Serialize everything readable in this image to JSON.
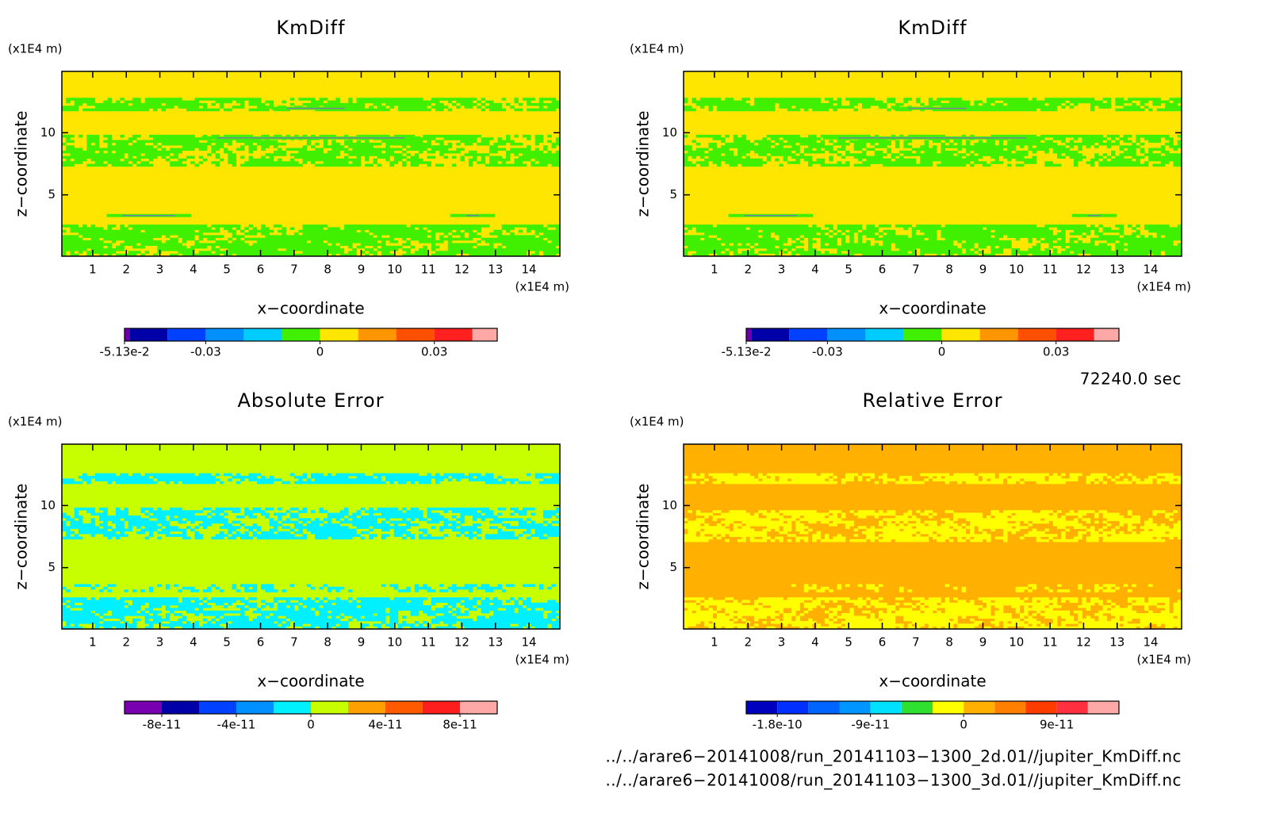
{
  "chart_data": [
    {
      "type": "contour",
      "title": "KmDiff",
      "xlabel": "x−coordinate",
      "ylabel": "z−coordinate",
      "xunit": "(x1E4 m)",
      "yunit": "(x1E4 m)",
      "xlim": [
        0.08,
        14.92
      ],
      "ylim": [
        0.06,
        14.94
      ],
      "xticks": [
        1,
        2,
        3,
        4,
        5,
        6,
        7,
        8,
        9,
        10,
        11,
        12,
        13,
        14
      ],
      "yticks": [
        5,
        10
      ],
      "colorbar": {
        "levels": [
          -0.0513,
          -0.05,
          -0.04,
          -0.03,
          -0.02,
          -0.01,
          0,
          0.01,
          0.02,
          0.03,
          0.04,
          0.0465
        ],
        "colors": [
          "#6a00a8",
          "#0000a8",
          "#0040ff",
          "#0090ff",
          "#00ccff",
          "#40f000",
          "#ffe600",
          "#ff9600",
          "#ff5000",
          "#ff2020",
          "#ffa8a8"
        ],
        "ticks": [
          {
            "value": -0.0513,
            "label": "-5.13e-2"
          },
          -0.03,
          0,
          0.03
        ]
      }
    },
    {
      "type": "contour",
      "title": "KmDiff",
      "xlabel": "x−coordinate",
      "ylabel": "z−coordinate",
      "xunit": "(x1E4 m)",
      "yunit": "(x1E4 m)",
      "xlim": [
        0.08,
        14.92
      ],
      "ylim": [
        0.06,
        14.94
      ],
      "xticks": [
        1,
        2,
        3,
        4,
        5,
        6,
        7,
        8,
        9,
        10,
        11,
        12,
        13,
        14
      ],
      "yticks": [
        5,
        10
      ],
      "colorbar": {
        "levels": [
          -0.0513,
          -0.05,
          -0.04,
          -0.03,
          -0.02,
          -0.01,
          0,
          0.01,
          0.02,
          0.03,
          0.04,
          0.0465
        ],
        "colors": [
          "#6a00a8",
          "#0000a8",
          "#0040ff",
          "#0090ff",
          "#00ccff",
          "#40f000",
          "#ffe600",
          "#ff9600",
          "#ff5000",
          "#ff2020",
          "#ffa8a8"
        ],
        "ticks": [
          {
            "value": -0.0513,
            "label": "-5.13e-2"
          },
          -0.03,
          0,
          0.03
        ]
      }
    },
    {
      "type": "contour",
      "title": "Absolute Error",
      "xlabel": "x−coordinate",
      "ylabel": "z−coordinate",
      "xunit": "(x1E4 m)",
      "yunit": "(x1E4 m)",
      "xlim": [
        0.08,
        14.92
      ],
      "ylim": [
        0.06,
        14.94
      ],
      "xticks": [
        1,
        2,
        3,
        4,
        5,
        6,
        7,
        8,
        9,
        10,
        11,
        12,
        13,
        14
      ],
      "yticks": [
        5,
        10
      ],
      "colorbar": {
        "levels": [
          -1e-10,
          -8e-11,
          -6e-11,
          -4e-11,
          -2e-11,
          0,
          2e-11,
          4e-11,
          6e-11,
          8e-11,
          1e-10
        ],
        "colors": [
          "#7800b0",
          "#0000a8",
          "#0040ff",
          "#0090ff",
          "#00f0ff",
          "#c8ff00",
          "#ffa000",
          "#ff5a00",
          "#ff1e1e",
          "#ffa8a8"
        ],
        "ticks": [
          -8e-11,
          -4e-11,
          0,
          4e-11,
          8e-11
        ]
      }
    },
    {
      "type": "contour",
      "title": "Relative Error",
      "xlabel": "x−coordinate",
      "ylabel": "z−coordinate",
      "xunit": "(x1E4 m)",
      "yunit": "(x1E4 m)",
      "xlim": [
        0.08,
        14.92
      ],
      "ylim": [
        0.06,
        14.94
      ],
      "xticks": [
        1,
        2,
        3,
        4,
        5,
        6,
        7,
        8,
        9,
        10,
        11,
        12,
        13,
        14
      ],
      "yticks": [
        5,
        10
      ],
      "colorbar": {
        "levels": [
          -2.1e-10,
          -1.8e-10,
          -1.5e-10,
          -1.2e-10,
          -9e-11,
          -6e-11,
          -3e-11,
          0,
          3e-11,
          6e-11,
          9e-11,
          1.2e-10,
          1.5e-10
        ],
        "colors": [
          "#0000c0",
          "#0030ff",
          "#0064ff",
          "#0096ff",
          "#00e0ff",
          "#30e030",
          "#ffff00",
          "#ffb000",
          "#ff8000",
          "#ff3c00",
          "#ff3040",
          "#ffa8a8"
        ],
        "ticks": [
          -1.8e-10,
          -9e-11,
          0,
          9e-11
        ]
      }
    }
  ],
  "time_label": "72240.0 sec",
  "files": [
    "../../arare6−20141008/run_20141103−1300_2d.01//jupiter_KmDiff.nc",
    "../../arare6−20141008/run_20141103−1300_3d.01//jupiter_KmDiff.nc"
  ]
}
